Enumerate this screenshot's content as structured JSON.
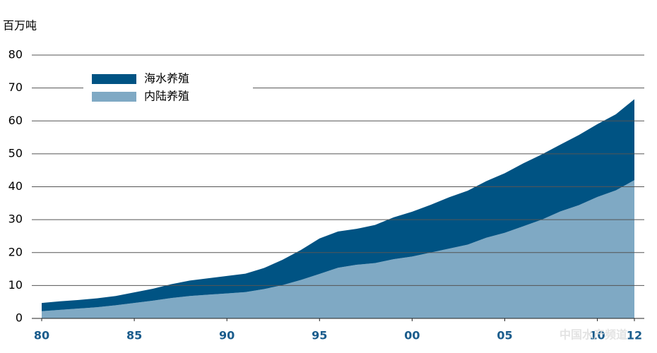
{
  "chart_data": {
    "type": "stacked_area",
    "y_axis_label": "百万吨",
    "x": [
      1980,
      1981,
      1982,
      1983,
      1984,
      1985,
      1986,
      1987,
      1988,
      1989,
      1990,
      1991,
      1992,
      1993,
      1994,
      1995,
      1996,
      1997,
      1998,
      1999,
      2000,
      2001,
      2002,
      2003,
      2004,
      2005,
      2006,
      2007,
      2008,
      2009,
      2010,
      2011,
      2012
    ],
    "series": [
      {
        "name": "内陆养殖",
        "color": "#7fa9c4",
        "values": [
          2.2,
          2.6,
          3.0,
          3.4,
          4.0,
          4.7,
          5.4,
          6.2,
          6.8,
          7.2,
          7.6,
          8.0,
          8.9,
          10.1,
          11.7,
          13.5,
          15.4,
          16.3,
          16.8,
          18.0,
          18.8,
          20.0,
          21.2,
          22.4,
          24.5,
          26.0,
          28.0,
          30.0,
          32.5,
          34.4,
          36.9,
          38.9,
          42.0
        ]
      },
      {
        "name": "海水养殖",
        "color": "#005383",
        "values": [
          2.5,
          2.6,
          2.6,
          2.7,
          2.8,
          3.2,
          3.6,
          4.2,
          4.7,
          5.0,
          5.3,
          5.6,
          6.4,
          7.7,
          9.1,
          10.8,
          11.0,
          10.9,
          11.6,
          12.7,
          13.6,
          14.5,
          15.6,
          16.4,
          17.2,
          18.1,
          19.1,
          19.8,
          20.3,
          21.3,
          22.1,
          23.1,
          24.6
        ]
      }
    ],
    "xlim": [
      1980,
      2012
    ],
    "xticks": [
      {
        "value": 1980,
        "label": "80"
      },
      {
        "value": 1985,
        "label": "85"
      },
      {
        "value": 1990,
        "label": "90"
      },
      {
        "value": 1995,
        "label": "95"
      },
      {
        "value": 2000,
        "label": "00"
      },
      {
        "value": 2005,
        "label": "05"
      },
      {
        "value": 2010,
        "label": "10"
      },
      {
        "value": 2012,
        "label": "12"
      }
    ],
    "ylim": [
      0,
      80
    ],
    "yticks": [
      0,
      10,
      20,
      30,
      40,
      50,
      60,
      70,
      80
    ],
    "grid": true,
    "watermark": "中国水产频道"
  }
}
